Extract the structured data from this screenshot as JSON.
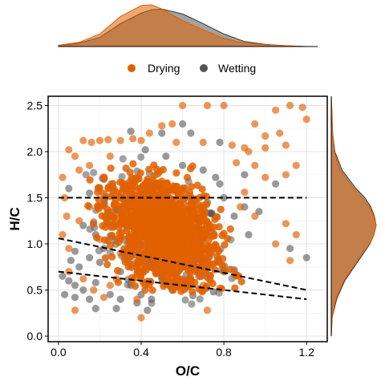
{
  "chart_data": {
    "type": "scatter",
    "xlabel": "O/C",
    "ylabel": "H/C",
    "xlim": [
      -0.05,
      1.3
    ],
    "ylim": [
      -0.06,
      2.6
    ],
    "x_ticks": [
      0.0,
      0.4,
      0.8,
      1.2
    ],
    "x_tick_labels": [
      "0.0",
      "0.4",
      "0.8",
      "1.2"
    ],
    "y_ticks": [
      0.0,
      0.5,
      1.0,
      1.5,
      2.0,
      2.5
    ],
    "y_tick_labels": [
      "0.0",
      "0.5",
      "1.0",
      "1.5",
      "2.0",
      "2.5"
    ],
    "grid": true,
    "legend_placement": "top",
    "marginal_density": [
      "top",
      "right"
    ],
    "series": [
      {
        "name": "Drying",
        "color": "#E06000",
        "core": {
          "center": [
            0.5,
            1.15
          ],
          "spread": [
            0.13,
            0.33
          ]
        },
        "points": [
          [
            0.02,
            1.72
          ],
          [
            0.03,
            1.5
          ],
          [
            0.05,
            2.02
          ],
          [
            0.08,
            1.95
          ],
          [
            0.12,
            2.12
          ],
          [
            0.16,
            2.1
          ],
          [
            0.2,
            2.12
          ],
          [
            0.24,
            2.13
          ],
          [
            0.3,
            2.12
          ],
          [
            0.36,
            2.14
          ],
          [
            0.4,
            2.12
          ],
          [
            0.44,
            2.2
          ],
          [
            0.5,
            2.28
          ],
          [
            0.55,
            2.3
          ],
          [
            0.6,
            2.5
          ],
          [
            0.72,
            2.5
          ],
          [
            0.8,
            2.5
          ],
          [
            0.57,
            2.1
          ],
          [
            0.7,
            2.1
          ],
          [
            0.84,
            2.07
          ],
          [
            0.9,
            2.04
          ],
          [
            1.0,
            2.04
          ],
          [
            1.07,
            2.2
          ],
          [
            1.05,
            2.45
          ],
          [
            1.12,
            2.5
          ],
          [
            1.18,
            2.48
          ],
          [
            1.2,
            2.35
          ],
          [
            1.1,
            2.07
          ],
          [
            0.95,
            2.3
          ],
          [
            1.0,
            2.17
          ],
          [
            0.92,
            2.0
          ],
          [
            0.86,
            1.88
          ],
          [
            0.95,
            1.85
          ],
          [
            1.15,
            1.85
          ],
          [
            1.1,
            1.75
          ],
          [
            1.0,
            1.72
          ],
          [
            0.9,
            1.56
          ],
          [
            0.88,
            1.4
          ],
          [
            0.95,
            1.3
          ],
          [
            1.1,
            1.22
          ],
          [
            1.15,
            1.1
          ],
          [
            1.05,
            1.0
          ],
          [
            1.12,
            0.82
          ],
          [
            0.85,
            0.7
          ],
          [
            0.72,
            0.28
          ],
          [
            0.08,
            0.28
          ],
          [
            0.25,
            0.55
          ],
          [
            0.3,
            0.9
          ],
          [
            0.05,
            0.7
          ],
          [
            0.02,
            1.1
          ],
          [
            0.04,
            1.3
          ],
          [
            0.1,
            1.25
          ],
          [
            0.15,
            1.4
          ],
          [
            0.2,
            1.05
          ],
          [
            0.05,
            0.95
          ],
          [
            0.12,
            0.62
          ],
          [
            0.22,
            0.42
          ],
          [
            0.38,
            0.4
          ],
          [
            0.45,
            0.8
          ],
          [
            0.6,
            0.62
          ],
          [
            0.7,
            0.55
          ],
          [
            0.78,
            0.52
          ],
          [
            0.15,
            1.85
          ],
          [
            0.2,
            1.6
          ],
          [
            0.25,
            1.95
          ],
          [
            0.1,
            1.8
          ],
          [
            0.4,
            0.2
          ],
          [
            0.17,
            0.5
          ],
          [
            0.28,
            0.62
          ],
          [
            0.35,
            0.78
          ]
        ]
      },
      {
        "name": "Wetting",
        "color": "#555555",
        "points": [
          [
            0.35,
            2.22
          ],
          [
            0.42,
            2.02
          ],
          [
            0.5,
            2.2
          ],
          [
            0.6,
            1.85
          ],
          [
            0.64,
            2.2
          ],
          [
            0.52,
            1.95
          ],
          [
            0.7,
            1.8
          ],
          [
            0.76,
            1.72
          ],
          [
            0.78,
            1.65
          ],
          [
            0.8,
            1.5
          ],
          [
            0.72,
            1.45
          ],
          [
            0.85,
            1.3
          ],
          [
            0.9,
            1.4
          ],
          [
            0.92,
            1.1
          ],
          [
            0.97,
            1.35
          ],
          [
            1.05,
            1.65
          ],
          [
            1.12,
            0.95
          ],
          [
            1.2,
            0.85
          ],
          [
            0.68,
            0.85
          ],
          [
            0.8,
            0.7
          ],
          [
            0.85,
            0.72
          ],
          [
            0.7,
            0.5
          ],
          [
            0.75,
            0.48
          ],
          [
            0.65,
            0.44
          ],
          [
            0.55,
            0.5
          ],
          [
            0.45,
            0.4
          ],
          [
            0.38,
            0.36
          ],
          [
            0.3,
            0.4
          ],
          [
            0.25,
            0.45
          ],
          [
            0.18,
            0.58
          ],
          [
            0.15,
            0.4
          ],
          [
            0.12,
            0.5
          ],
          [
            0.08,
            0.55
          ],
          [
            0.05,
            0.6
          ],
          [
            0.1,
            0.75
          ],
          [
            0.15,
            0.85
          ],
          [
            0.2,
            0.8
          ],
          [
            0.22,
            0.95
          ],
          [
            0.18,
            1.1
          ],
          [
            0.12,
            1.2
          ],
          [
            0.08,
            0.92
          ],
          [
            0.06,
            0.82
          ],
          [
            0.03,
            0.45
          ],
          [
            0.08,
            0.42
          ],
          [
            0.18,
            0.3
          ],
          [
            0.28,
            0.3
          ],
          [
            0.43,
            0.28
          ],
          [
            0.4,
            0.45
          ],
          [
            0.35,
            0.55
          ],
          [
            0.5,
            0.62
          ],
          [
            0.58,
            0.7
          ],
          [
            0.62,
            0.6
          ],
          [
            0.48,
            0.72
          ],
          [
            0.3,
            0.7
          ],
          [
            0.25,
            1.3
          ],
          [
            0.15,
            1.55
          ],
          [
            0.22,
            1.7
          ],
          [
            0.05,
            1.6
          ],
          [
            0.02,
            0.65
          ],
          [
            0.6,
            2.3
          ],
          [
            0.78,
            2.1
          ],
          [
            0.9,
            1.75
          ]
        ]
      }
    ],
    "lines": [
      {
        "name": "dashed-line-1",
        "x": [
          0.0,
          1.2
        ],
        "y": [
          1.5,
          1.5
        ]
      },
      {
        "name": "dashed-line-2",
        "x": [
          0.0,
          1.2
        ],
        "y": [
          1.06,
          0.5
        ]
      },
      {
        "name": "dashed-line-3",
        "x": [
          0.0,
          1.2
        ],
        "y": [
          0.7,
          0.4
        ]
      }
    ],
    "top_density": {
      "x": [
        0.0,
        0.1,
        0.2,
        0.3,
        0.4,
        0.45,
        0.5,
        0.6,
        0.7,
        0.8,
        0.9,
        1.0,
        1.1,
        1.2
      ],
      "Drying": [
        0.03,
        0.1,
        0.3,
        0.72,
        0.98,
        1.0,
        0.9,
        0.62,
        0.4,
        0.2,
        0.08,
        0.04,
        0.02,
        0.0
      ],
      "Wetting": [
        0.02,
        0.08,
        0.22,
        0.55,
        0.8,
        0.88,
        0.9,
        0.78,
        0.55,
        0.3,
        0.12,
        0.05,
        0.02,
        0.0
      ]
    },
    "right_density": {
      "y": [
        0.0,
        0.2,
        0.4,
        0.6,
        0.8,
        1.0,
        1.1,
        1.2,
        1.3,
        1.4,
        1.5,
        1.6,
        1.8,
        2.0,
        2.2,
        2.4,
        2.6
      ],
      "Drying": [
        0.0,
        0.02,
        0.1,
        0.28,
        0.55,
        0.85,
        0.95,
        1.0,
        0.95,
        0.85,
        0.7,
        0.5,
        0.2,
        0.07,
        0.03,
        0.02,
        0.0
      ],
      "Wetting": [
        0.0,
        0.02,
        0.12,
        0.3,
        0.58,
        0.86,
        0.95,
        1.0,
        0.96,
        0.88,
        0.75,
        0.55,
        0.24,
        0.08,
        0.03,
        0.01,
        0.0
      ]
    }
  }
}
